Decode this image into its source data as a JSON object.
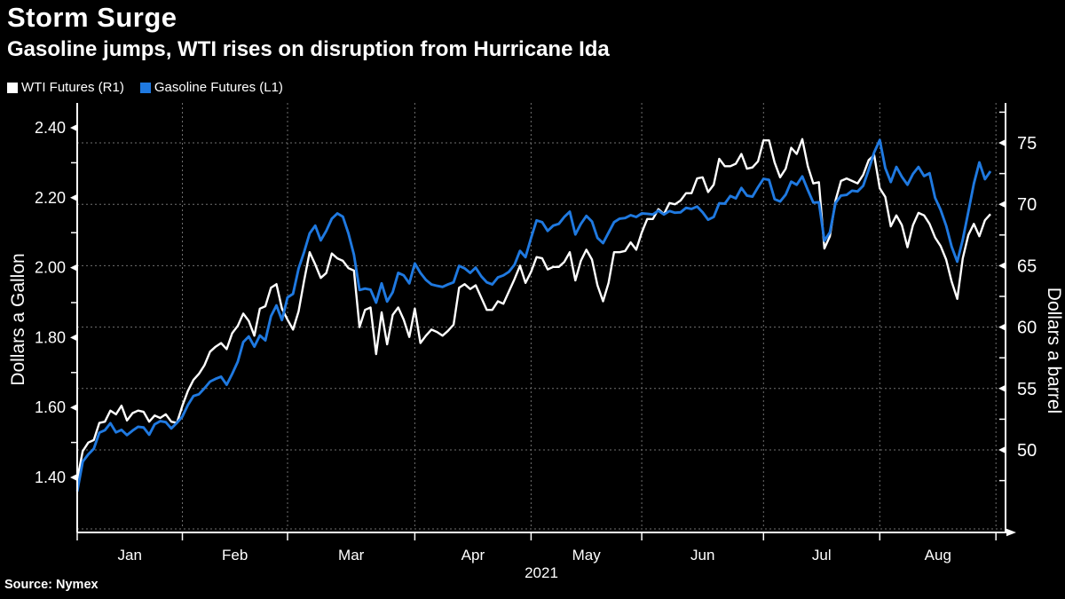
{
  "header": {
    "title": "Storm Surge",
    "subtitle": "Gasoline jumps, WTI rises on disruption from Hurricane Ida"
  },
  "legend": {
    "items": [
      {
        "label": "WTI Futures (R1)",
        "color": "#ffffff"
      },
      {
        "label": "Gasoline Futures (L1)",
        "color": "#1f79e0"
      }
    ]
  },
  "source": "Source: Nymex",
  "colors": {
    "background": "#000000",
    "grid": "#707070",
    "axis": "#ffffff",
    "wti_line": "#ffffff",
    "gasoline_line": "#1f79e0"
  },
  "chart_data": {
    "type": "line",
    "title": "Storm Surge",
    "subtitle": "Gasoline jumps, WTI rises on disruption from Hurricane Ida",
    "x_axis": {
      "year_label": "2021",
      "months": [
        {
          "label": "Jan",
          "trading_days": 19
        },
        {
          "label": "Feb",
          "trading_days": 19
        },
        {
          "label": "Mar",
          "trading_days": 23
        },
        {
          "label": "Apr",
          "trading_days": 21
        },
        {
          "label": "May",
          "trading_days": 20
        },
        {
          "label": "Jun",
          "trading_days": 22
        },
        {
          "label": "Jul",
          "trading_days": 21
        },
        {
          "label": "Aug",
          "trading_days": 21
        }
      ]
    },
    "left_axis": {
      "title": "Dollars a Gallon",
      "tick_labels": [
        "2.40",
        "2.20",
        "2.00",
        "1.80",
        "1.60",
        "1.40"
      ],
      "ticks": [
        2.4,
        2.2,
        2.0,
        1.8,
        1.6,
        1.4
      ],
      "minor_ticks": [
        2.3,
        2.1,
        1.9,
        1.7,
        1.5
      ],
      "grid": false
    },
    "right_axis": {
      "title": "Dollars a barrel",
      "tick_labels": [
        "75",
        "70",
        "65",
        "60",
        "55",
        "50"
      ],
      "ticks": [
        75,
        70,
        65,
        60,
        55,
        50
      ],
      "minor_ticks": [
        77.5,
        72.5,
        67.5,
        62.5,
        57.5,
        52.5,
        47.5
      ],
      "grid": true
    },
    "series": [
      {
        "name": "WTI Futures",
        "legend_label": "WTI Futures (R1)",
        "axis": "right",
        "unit": "dollars a barrel",
        "color": "#ffffff",
        "values": [
          47.6,
          49.9,
          50.6,
          50.8,
          52.2,
          52.3,
          53.2,
          52.9,
          53.6,
          52.4,
          53.0,
          53.2,
          53.1,
          52.3,
          52.8,
          52.6,
          52.9,
          52.3,
          52.2,
          53.6,
          54.8,
          55.7,
          56.2,
          56.9,
          58.0,
          58.4,
          58.7,
          58.2,
          59.5,
          60.1,
          61.1,
          60.5,
          59.3,
          61.5,
          61.7,
          63.2,
          63.5,
          61.5,
          60.6,
          59.8,
          61.3,
          63.8,
          66.1,
          65.1,
          64.0,
          64.4,
          66.0,
          65.6,
          65.4,
          64.8,
          64.6,
          60.0,
          61.4,
          61.6,
          57.8,
          61.2,
          58.6,
          61.0,
          61.6,
          60.6,
          59.2,
          61.5,
          58.7,
          59.3,
          59.8,
          59.6,
          59.3,
          59.7,
          60.2,
          63.2,
          63.5,
          63.1,
          63.4,
          62.4,
          61.4,
          61.4,
          62.1,
          61.9,
          62.9,
          63.9,
          65.0,
          63.6,
          64.5,
          65.7,
          65.6,
          64.7,
          64.9,
          64.9,
          65.3,
          66.1,
          63.8,
          65.4,
          66.3,
          65.5,
          63.4,
          62.1,
          63.6,
          66.1,
          66.1,
          66.2,
          66.9,
          66.3,
          67.7,
          68.8,
          68.8,
          69.6,
          69.2,
          70.1,
          70.0,
          70.3,
          70.9,
          70.9,
          72.1,
          72.2,
          71.0,
          71.6,
          73.7,
          73.1,
          73.1,
          73.3,
          74.1,
          72.9,
          73.0,
          73.5,
          75.2,
          75.2,
          73.4,
          72.2,
          72.9,
          74.6,
          74.1,
          75.3,
          73.1,
          71.7,
          71.8,
          66.4,
          67.4,
          70.3,
          71.9,
          72.1,
          71.9,
          71.7,
          72.4,
          73.6,
          74.0,
          71.3,
          70.6,
          68.2,
          69.1,
          68.3,
          66.5,
          68.3,
          69.3,
          69.1,
          68.4,
          67.3,
          66.6,
          65.5,
          63.7,
          62.3,
          65.6,
          67.5,
          68.4,
          67.4,
          68.7,
          69.2
        ]
      },
      {
        "name": "Gasoline Futures",
        "legend_label": "Gasoline Futures (L1)",
        "axis": "left",
        "unit": "dollars a gallon",
        "color": "#1f79e0",
        "values": [
          1.36,
          1.445,
          1.466,
          1.482,
          1.528,
          1.535,
          1.555,
          1.529,
          1.536,
          1.521,
          1.534,
          1.545,
          1.543,
          1.522,
          1.552,
          1.561,
          1.558,
          1.54,
          1.556,
          1.574,
          1.607,
          1.633,
          1.638,
          1.655,
          1.674,
          1.682,
          1.688,
          1.665,
          1.696,
          1.731,
          1.787,
          1.803,
          1.774,
          1.806,
          1.792,
          1.861,
          1.892,
          1.85,
          1.915,
          1.925,
          1.998,
          2.045,
          2.098,
          2.12,
          2.078,
          2.105,
          2.14,
          2.155,
          2.146,
          2.098,
          2.037,
          1.936,
          1.94,
          1.937,
          1.9,
          1.955,
          1.903,
          1.93,
          1.985,
          1.978,
          1.955,
          2.012,
          1.985,
          1.965,
          1.952,
          1.948,
          1.945,
          1.952,
          1.958,
          2.005,
          1.998,
          1.985,
          2.0,
          1.975,
          1.958,
          1.952,
          1.972,
          1.978,
          1.988,
          2.008,
          2.048,
          2.03,
          2.085,
          2.135,
          2.13,
          2.105,
          2.12,
          2.125,
          2.145,
          2.16,
          2.095,
          2.125,
          2.148,
          2.132,
          2.085,
          2.07,
          2.1,
          2.13,
          2.14,
          2.142,
          2.15,
          2.145,
          2.155,
          2.154,
          2.152,
          2.163,
          2.152,
          2.162,
          2.157,
          2.158,
          2.171,
          2.168,
          2.175,
          2.158,
          2.137,
          2.145,
          2.184,
          2.183,
          2.205,
          2.198,
          2.228,
          2.206,
          2.203,
          2.23,
          2.254,
          2.251,
          2.196,
          2.189,
          2.209,
          2.246,
          2.237,
          2.261,
          2.222,
          2.186,
          2.187,
          2.077,
          2.101,
          2.185,
          2.206,
          2.208,
          2.22,
          2.218,
          2.234,
          2.28,
          2.33,
          2.365,
          2.285,
          2.245,
          2.288,
          2.26,
          2.237,
          2.268,
          2.288,
          2.262,
          2.27,
          2.2,
          2.165,
          2.12,
          2.06,
          2.017,
          2.08,
          2.16,
          2.24,
          2.301,
          2.253,
          2.276
        ]
      }
    ]
  }
}
